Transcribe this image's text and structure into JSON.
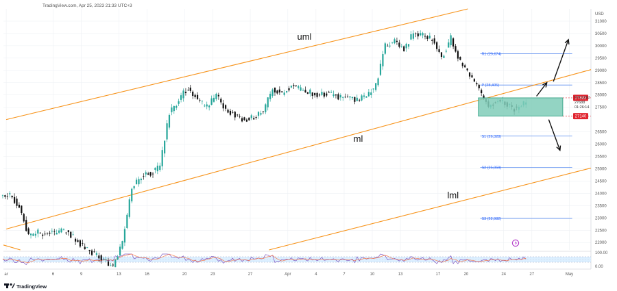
{
  "header": {
    "source_line": "TradingView.com, Apr 25, 2023 21:33 UTC+3"
  },
  "footer": {
    "logo_text": "TradingView"
  },
  "price_axis": {
    "currency": "USD",
    "ticks": [
      {
        "label": "31000",
        "value": 31000
      },
      {
        "label": "30500",
        "value": 30500
      },
      {
        "label": "30000",
        "value": 30000
      },
      {
        "label": "29500",
        "value": 29500
      },
      {
        "label": "29000",
        "value": 29000
      },
      {
        "label": "28500",
        "value": 28500
      },
      {
        "label": "28000",
        "value": 28000
      },
      {
        "label": "27500",
        "value": 27500
      },
      {
        "label": "26500",
        "value": 26500
      },
      {
        "label": "26000",
        "value": 26000
      },
      {
        "label": "25500",
        "value": 25500
      },
      {
        "label": "25000",
        "value": 25000
      },
      {
        "label": "24500",
        "value": 24500
      },
      {
        "label": "24000",
        "value": 24000
      },
      {
        "label": "23500",
        "value": 23500
      },
      {
        "label": "23000",
        "value": 23000
      },
      {
        "label": "22500",
        "value": 22500
      },
      {
        "label": "22000",
        "value": 22000
      }
    ],
    "badges": [
      {
        "label": "27883",
        "value": 27883,
        "color": "#e0232e"
      },
      {
        "label": "27140",
        "value": 27140,
        "color": "#e0232e"
      }
    ],
    "symbol": "BTCUSD",
    "last_price": "27688",
    "countdown": "01:26:14"
  },
  "rsi_axis": {
    "ticks": [
      {
        "label": "100.00",
        "value": 100
      },
      {
        "label": "0.00",
        "value": 0
      }
    ]
  },
  "time_axis": {
    "ticks": [
      {
        "label": "ar",
        "bar": 0
      },
      {
        "label": "6",
        "bar": 5
      },
      {
        "label": "9",
        "bar": 8
      },
      {
        "label": "13",
        "bar": 12
      },
      {
        "label": "16",
        "bar": 15
      },
      {
        "label": "20",
        "bar": 19
      },
      {
        "label": "23",
        "bar": 22
      },
      {
        "label": "27",
        "bar": 26
      },
      {
        "label": "Apr",
        "bar": 30
      },
      {
        "label": "4",
        "bar": 33
      },
      {
        "label": "7",
        "bar": 36
      },
      {
        "label": "10",
        "bar": 39
      },
      {
        "label": "13",
        "bar": 42
      },
      {
        "label": "17",
        "bar": 46
      },
      {
        "label": "20",
        "bar": 49
      },
      {
        "label": "24",
        "bar": 53
      },
      {
        "label": "27",
        "bar": 56
      },
      {
        "label": "May",
        "bar": 60
      }
    ]
  },
  "chart_data": {
    "type": "candlestick",
    "symbol": "BTCUSD",
    "bar_interval": "4H",
    "ylim": [
      21700,
      31500
    ],
    "x_range_bars": [
      -0.3,
      62.3
    ],
    "daily_closes": [
      {
        "bar": 0,
        "close": 23900
      },
      {
        "bar": 1,
        "close": 23500
      },
      {
        "bar": 2,
        "close": 22300
      },
      {
        "bar": 3,
        "close": 22400
      },
      {
        "bar": 4,
        "close": 22400
      },
      {
        "bar": 5,
        "close": 22400
      },
      {
        "bar": 6,
        "close": 22500
      },
      {
        "bar": 7,
        "close": 22100
      },
      {
        "bar": 8,
        "close": 21800
      },
      {
        "bar": 9,
        "close": 21500
      },
      {
        "bar": 10,
        "close": 21300
      },
      {
        "bar": 11,
        "close": 21000
      },
      {
        "bar": 12,
        "close": 22000
      },
      {
        "bar": 13,
        "close": 24200
      },
      {
        "bar": 14,
        "close": 24700
      },
      {
        "bar": 15,
        "close": 24800
      },
      {
        "bar": 16,
        "close": 25100
      },
      {
        "bar": 17,
        "close": 27300
      },
      {
        "bar": 18,
        "close": 27800
      },
      {
        "bar": 19,
        "close": 28300
      },
      {
        "bar": 20,
        "close": 27800
      },
      {
        "bar": 21,
        "close": 27500
      },
      {
        "bar": 22,
        "close": 28000
      },
      {
        "bar": 23,
        "close": 27400
      },
      {
        "bar": 24,
        "close": 27200
      },
      {
        "bar": 25,
        "close": 27000
      },
      {
        "bar": 26,
        "close": 27100
      },
      {
        "bar": 27,
        "close": 27300
      },
      {
        "bar": 28,
        "close": 28300
      },
      {
        "bar": 29,
        "close": 28000
      },
      {
        "bar": 30,
        "close": 28400
      },
      {
        "bar": 31,
        "close": 28200
      },
      {
        "bar": 32,
        "close": 28100
      },
      {
        "bar": 33,
        "close": 28000
      },
      {
        "bar": 34,
        "close": 28100
      },
      {
        "bar": 35,
        "close": 27900
      },
      {
        "bar": 36,
        "close": 27900
      },
      {
        "bar": 37,
        "close": 27800
      },
      {
        "bar": 38,
        "close": 27950
      },
      {
        "bar": 39,
        "close": 28400
      },
      {
        "bar": 40,
        "close": 30000
      },
      {
        "bar": 41,
        "close": 30200
      },
      {
        "bar": 42,
        "close": 29900
      },
      {
        "bar": 43,
        "close": 30500
      },
      {
        "bar": 44,
        "close": 30400
      },
      {
        "bar": 45,
        "close": 30300
      },
      {
        "bar": 46,
        "close": 29500
      },
      {
        "bar": 47,
        "close": 30300
      },
      {
        "bar": 48,
        "close": 29300
      },
      {
        "bar": 49,
        "close": 28800
      },
      {
        "bar": 50,
        "close": 28200
      },
      {
        "bar": 51,
        "close": 27500
      },
      {
        "bar": 52,
        "close": 27800
      },
      {
        "bar": 53,
        "close": 27600
      },
      {
        "bar": 54,
        "close": 27400
      },
      {
        "bar": 55,
        "close": 27688
      }
    ],
    "channel": {
      "color": "#f7931a",
      "lines": [
        {
          "name": "uml",
          "p1": {
            "bar": 0,
            "value": 27000
          },
          "p2": {
            "bar": 47,
            "value": 31300
          }
        },
        {
          "name": "ml",
          "p1": {
            "bar": 0,
            "value": 22550
          },
          "p2": {
            "bar": 62,
            "value": 29000
          }
        },
        {
          "name": "lml",
          "p1": {
            "bar": 28,
            "value": 21700
          },
          "p2": {
            "bar": 62,
            "value": 25000
          }
        }
      ],
      "labels": [
        {
          "text": "uml",
          "bar": 31,
          "value": 30250
        },
        {
          "text": "ml",
          "bar": 37,
          "value": 26100
        },
        {
          "text": "lml",
          "bar": 47,
          "value": 23800
        }
      ]
    },
    "decline_line": {
      "color": "#f7931a",
      "p1": {
        "bar": -0.3,
        "value": 21900
      },
      "p2": {
        "bar": 1.5,
        "value": 21700
      }
    },
    "pivot_levels": [
      {
        "label": "R1 (29,674)",
        "value": 29674
      },
      {
        "label": "P (28,405)",
        "value": 28405
      },
      {
        "label": "S1 (26,328)",
        "value": 26328
      },
      {
        "label": "S2 (25,059)",
        "value": 25059
      },
      {
        "label": "S3 (22,982)",
        "value": 22982
      }
    ],
    "pivot_range_bars": [
      50.5,
      60.3
    ],
    "range_box": {
      "top": 27883,
      "bottom": 27140,
      "bar_start": 50.3,
      "bar_end": 59.3,
      "fill": "#80cdb9",
      "border": "#2a9d7f"
    },
    "arrows": [
      {
        "name": "breakout-up-arrow",
        "from": {
          "bar": 56.5,
          "value": 27950
        },
        "to": {
          "bar": 57.6,
          "value": 28500
        }
      },
      {
        "name": "target-up-arrow",
        "from": {
          "bar": 58.3,
          "value": 28550
        },
        "to": {
          "bar": 59.9,
          "value": 30250
        }
      },
      {
        "name": "breakdown-down-arrow",
        "from": {
          "bar": 57.8,
          "value": 27000
        },
        "to": {
          "bar": 59.0,
          "value": 25750
        }
      }
    ],
    "rsi": {
      "range": [
        0,
        100
      ],
      "colors": {
        "rsi": "#7e57c2",
        "signal": "#f77c4f",
        "band": "#dcefff"
      }
    },
    "colors": {
      "up": "#26a69a",
      "down": "#111111",
      "grid": "#eef0f4"
    }
  }
}
